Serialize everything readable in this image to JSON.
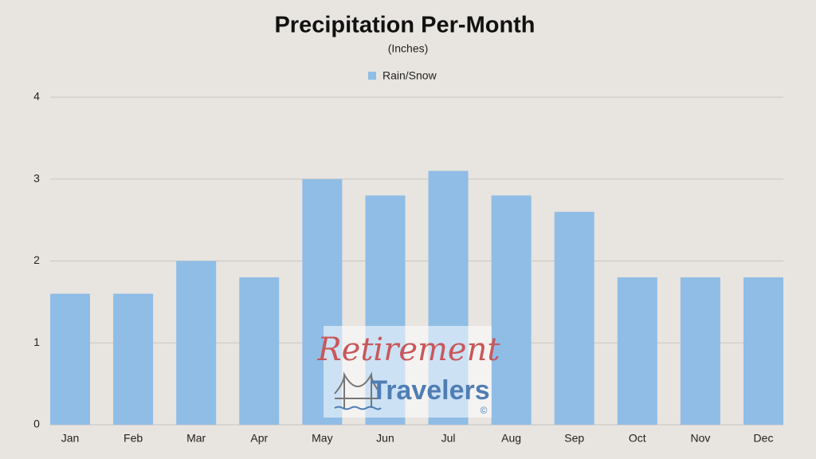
{
  "chart_data": {
    "type": "bar",
    "title": "Precipitation Per-Month",
    "subtitle": "(Inches)",
    "categories": [
      "Jan",
      "Feb",
      "Mar",
      "Apr",
      "May",
      "Jun",
      "Jul",
      "Aug",
      "Sep",
      "Oct",
      "Nov",
      "Dec"
    ],
    "series": [
      {
        "name": "Rain/Snow",
        "color": "#8fbde6",
        "values": [
          1.6,
          1.6,
          2,
          1.8,
          3,
          2.8,
          3.1,
          2.8,
          2.6,
          1.8,
          1.8,
          1.8
        ]
      }
    ],
    "ylim": [
      0,
      4
    ],
    "yticks": [
      0,
      1,
      2,
      3,
      4
    ],
    "grid": true,
    "legend": "top"
  },
  "watermark": {
    "line1": "Retirement",
    "line2": "Travelers",
    "mark": "©"
  }
}
